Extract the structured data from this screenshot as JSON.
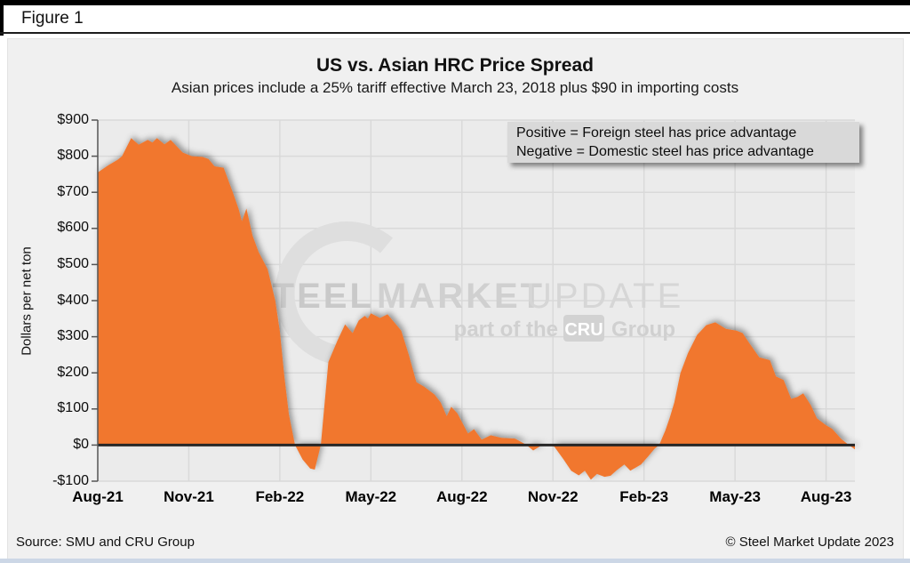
{
  "figure_label": "Figure 1",
  "chart_data": {
    "type": "area",
    "title": "US vs. Asian HRC Price Spread",
    "subtitle": "Asian prices include a 25% tariff effective March 23, 2018 plus $90 in importing costs",
    "ylabel": "Dollars per net ton",
    "ylim": [
      -100,
      900
    ],
    "grid": true,
    "area_color": "#F1772F",
    "zero_line_color": "#262626",
    "plot_bg_color": "#ebebeb",
    "gridline_color": "#d9d9d9",
    "y_tick_labels": [
      "$900",
      "$800",
      "$700",
      "$600",
      "$500",
      "$400",
      "$300",
      "$200",
      "$100",
      "$0",
      "-$100"
    ],
    "y_tick_values": [
      900,
      800,
      700,
      600,
      500,
      400,
      300,
      200,
      100,
      0,
      -100
    ],
    "x_tick_labels": [
      "Aug-21",
      "Nov-21",
      "Feb-22",
      "May-22",
      "Aug-22",
      "Nov-22",
      "Feb-23",
      "May-23",
      "Aug-23"
    ],
    "x_tick_months": [
      0,
      3,
      6,
      9,
      12,
      15,
      18,
      21,
      24
    ],
    "x_range_months": [
      0,
      24.95
    ],
    "annotation": [
      "Positive = Foreign steel has price advantage",
      "Negative = Domestic steel has price advantage"
    ],
    "points_months_vs_dollars": [
      [
        0,
        755
      ],
      [
        0.35,
        775
      ],
      [
        0.65,
        790
      ],
      [
        0.8,
        800
      ],
      [
        1.1,
        850
      ],
      [
        1.35,
        832
      ],
      [
        1.65,
        845
      ],
      [
        1.8,
        838
      ],
      [
        1.95,
        850
      ],
      [
        2.2,
        833
      ],
      [
        2.4,
        845
      ],
      [
        2.8,
        810
      ],
      [
        3.1,
        800
      ],
      [
        3.45,
        798
      ],
      [
        3.65,
        792
      ],
      [
        3.85,
        772
      ],
      [
        4.15,
        768
      ],
      [
        4.45,
        700
      ],
      [
        4.65,
        652
      ],
      [
        4.75,
        620
      ],
      [
        4.9,
        655
      ],
      [
        5.1,
        580
      ],
      [
        5.3,
        535
      ],
      [
        5.6,
        487
      ],
      [
        5.85,
        400
      ],
      [
        6.0,
        315
      ],
      [
        6.15,
        190
      ],
      [
        6.3,
        85
      ],
      [
        6.5,
        0
      ],
      [
        6.75,
        -40
      ],
      [
        7.0,
        -65
      ],
      [
        7.15,
        -68
      ],
      [
        7.35,
        0
      ],
      [
        7.6,
        230
      ],
      [
        7.9,
        290
      ],
      [
        8.15,
        334
      ],
      [
        8.4,
        310
      ],
      [
        8.6,
        345
      ],
      [
        8.8,
        358
      ],
      [
        8.9,
        350
      ],
      [
        9.0,
        365
      ],
      [
        9.3,
        352
      ],
      [
        9.55,
        362
      ],
      [
        10.0,
        317
      ],
      [
        10.25,
        250
      ],
      [
        10.5,
        174
      ],
      [
        10.75,
        162
      ],
      [
        11.1,
        140
      ],
      [
        11.3,
        118
      ],
      [
        11.5,
        80
      ],
      [
        11.65,
        106
      ],
      [
        11.85,
        88
      ],
      [
        12.2,
        32
      ],
      [
        12.4,
        44
      ],
      [
        12.65,
        15
      ],
      [
        12.95,
        27
      ],
      [
        13.3,
        20
      ],
      [
        13.75,
        18
      ],
      [
        14.1,
        2
      ],
      [
        14.35,
        -15
      ],
      [
        14.6,
        -2
      ],
      [
        14.85,
        0
      ],
      [
        15.05,
        -5
      ],
      [
        15.35,
        -40
      ],
      [
        15.6,
        -71
      ],
      [
        15.85,
        -84
      ],
      [
        16.05,
        -71
      ],
      [
        16.25,
        -96
      ],
      [
        16.45,
        -80
      ],
      [
        16.7,
        -88
      ],
      [
        16.9,
        -85
      ],
      [
        17.1,
        -70
      ],
      [
        17.35,
        -54
      ],
      [
        17.55,
        -71
      ],
      [
        17.9,
        -54
      ],
      [
        18.15,
        -30
      ],
      [
        18.35,
        -10
      ],
      [
        18.5,
        0
      ],
      [
        18.7,
        40
      ],
      [
        18.85,
        76
      ],
      [
        19.0,
        118
      ],
      [
        19.2,
        199
      ],
      [
        19.45,
        255
      ],
      [
        19.75,
        305
      ],
      [
        20.05,
        332
      ],
      [
        20.35,
        340
      ],
      [
        20.7,
        322
      ],
      [
        21.05,
        317
      ],
      [
        21.25,
        310
      ],
      [
        21.45,
        285
      ],
      [
        21.6,
        267
      ],
      [
        21.8,
        243
      ],
      [
        22.15,
        235
      ],
      [
        22.35,
        190
      ],
      [
        22.6,
        180
      ],
      [
        22.85,
        128
      ],
      [
        23.05,
        133
      ],
      [
        23.25,
        143
      ],
      [
        23.5,
        110
      ],
      [
        23.7,
        74
      ],
      [
        24.0,
        55
      ],
      [
        24.2,
        45
      ],
      [
        24.5,
        17
      ],
      [
        24.75,
        0
      ],
      [
        24.95,
        -12
      ]
    ]
  },
  "watermark": {
    "word1": "STEEL",
    "word2": "MARKET",
    "word3": "UPDATE",
    "sub_prefix": "part of the",
    "sub_box": "CRU",
    "sub_suffix": "Group"
  },
  "footer": {
    "source": "Source: SMU and CRU Group",
    "copyright": "© Steel Market Update 2023"
  }
}
